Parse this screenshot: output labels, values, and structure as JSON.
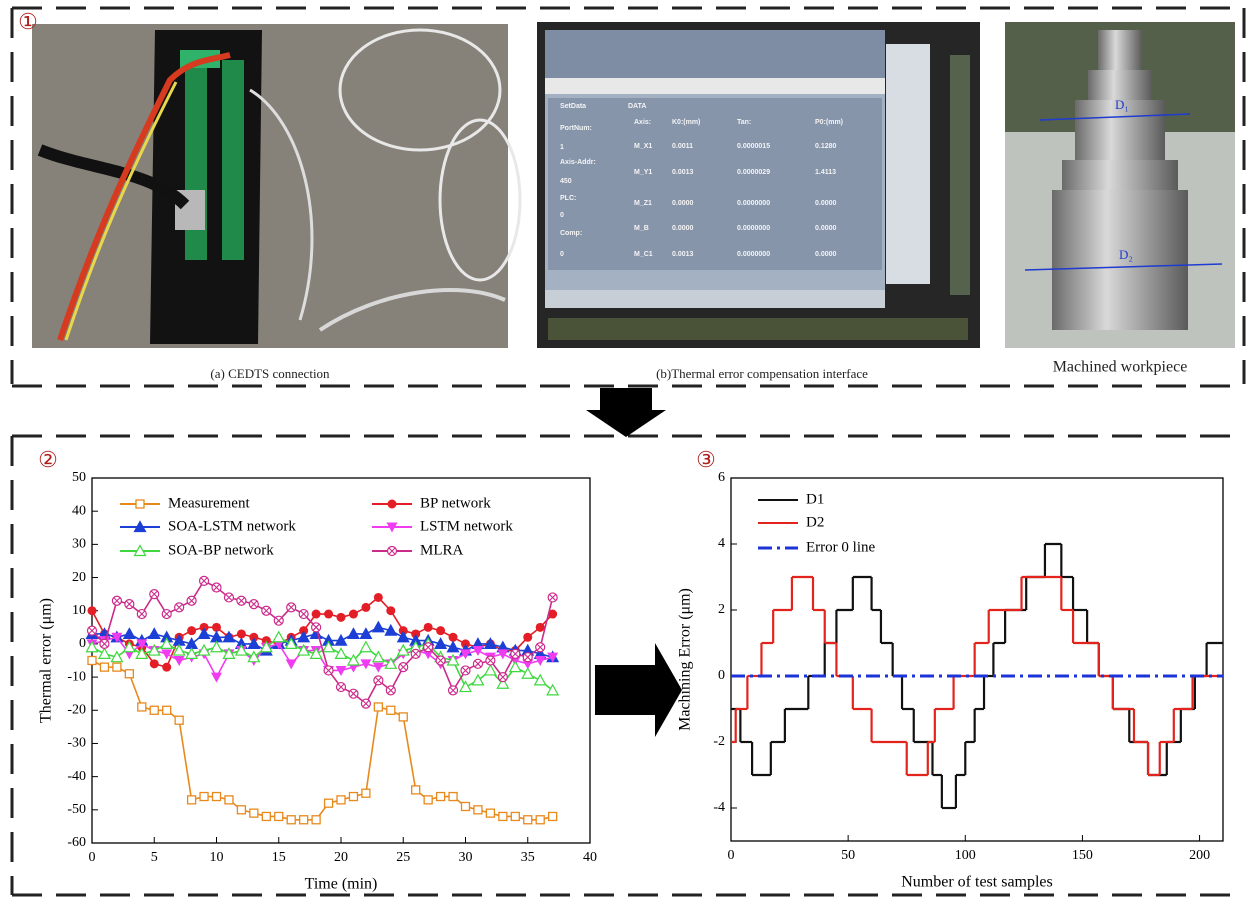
{
  "markers": [
    "①",
    "②",
    "③"
  ],
  "photos": {
    "a": {
      "caption": "(a) CEDTS connection"
    },
    "b": {
      "caption": "(b)Thermal error compensation interface",
      "screen": {
        "title": "DATA",
        "side": [
          "SetData",
          "PortNum:",
          "1",
          "Axis-Addr:",
          "450",
          "PLC:",
          "0",
          "Comp:",
          "0"
        ],
        "header": [
          "Axis:",
          "K0:(mm)",
          "Tan:",
          "P0:(mm)"
        ],
        "rows": [
          [
            "M_X1",
            "0.0011",
            "0.0000015",
            "0.1280"
          ],
          [
            "M_Y1",
            "0.0013",
            "0.0000029",
            "1.4113"
          ],
          [
            "M_Z1",
            "0.0000",
            "0.0000000",
            "0.0000"
          ],
          [
            "M_B",
            "0.0000",
            "0.0000000",
            "0.0000"
          ],
          [
            "M_C1",
            "0.0013",
            "0.0000000",
            "0.0000"
          ]
        ]
      }
    },
    "c": {
      "caption": "Machined workpiece",
      "labels": [
        "D₁",
        "D₂"
      ]
    }
  },
  "chart_data": [
    {
      "type": "line",
      "xlabel": "Time (min)",
      "ylabel": "Thermal error (μm)",
      "xlim": [
        0,
        40
      ],
      "xticks": [
        0,
        5,
        10,
        15,
        20,
        25,
        30,
        35,
        40
      ],
      "ylim": [
        -60,
        50
      ],
      "yticks": [
        -60,
        -50,
        -40,
        -30,
        -20,
        -10,
        0,
        10,
        20,
        30,
        40,
        50
      ],
      "legend": "upper left",
      "x": [
        0,
        1,
        2,
        3,
        4,
        5,
        6,
        7,
        8,
        9,
        10,
        11,
        12,
        13,
        14,
        15,
        16,
        17,
        18,
        19,
        20,
        21,
        22,
        23,
        24,
        25,
        26,
        27,
        28,
        29,
        30,
        31,
        32,
        33,
        34,
        35,
        36,
        37
      ],
      "series": [
        {
          "name": "Measurement",
          "color": "#e8891c",
          "marker": "square",
          "values": [
            -5,
            -7,
            -7,
            -9,
            -19,
            -20,
            -20,
            -23,
            -47,
            -46,
            -46,
            -47,
            -50,
            -51,
            -52,
            -52,
            -53,
            -53,
            -53,
            -48,
            -47,
            -46,
            -45,
            -19,
            -20,
            -22,
            -44,
            -47,
            -46,
            -46,
            -49,
            -50,
            -51,
            -52,
            -52,
            -53,
            -53,
            -52
          ]
        },
        {
          "name": "BP network",
          "color": "#e41e26",
          "marker": "circle",
          "values": [
            10,
            3,
            2,
            0,
            -1,
            -6,
            -7,
            2,
            4,
            5,
            5,
            2,
            3,
            2,
            1,
            0,
            2,
            4,
            9,
            9,
            8,
            9,
            11,
            14,
            10,
            4,
            3,
            5,
            4,
            2,
            0,
            -1,
            0,
            -2,
            -2,
            2,
            5,
            9
          ]
        },
        {
          "name": "SOA-LSTM network",
          "color": "#1c3fd6",
          "marker": "triangle",
          "values": [
            3,
            3,
            2,
            3,
            1,
            3,
            2,
            1,
            0,
            3,
            2,
            2,
            0,
            0,
            -2,
            0,
            1,
            2,
            3,
            1,
            1,
            3,
            3,
            5,
            4,
            2,
            1,
            1,
            0,
            -1,
            -2,
            0,
            0,
            -1,
            -2,
            -2,
            -3,
            -4
          ]
        },
        {
          "name": "LSTM network",
          "color": "#f03cf0",
          "marker": "down",
          "values": [
            0,
            1,
            2,
            -3,
            0,
            -2,
            -3,
            -5,
            -4,
            -3,
            -10,
            -3,
            -2,
            -5,
            -1,
            0,
            -6,
            -2,
            -2,
            -8,
            -8,
            -7,
            -6,
            -7,
            -6,
            -3,
            -2,
            -3,
            -6,
            -5,
            -3,
            -2,
            -4,
            -3,
            -5,
            -6,
            -5,
            -4
          ]
        },
        {
          "name": "SOA-BP network",
          "color": "#3ed83e",
          "marker": "otriangle",
          "values": [
            -1,
            -3,
            -4,
            -1,
            -3,
            -2,
            0,
            -2,
            -3,
            -2,
            -1,
            -3,
            -2,
            -4,
            -1,
            2,
            0,
            -2,
            -3,
            -1,
            -3,
            -5,
            -1,
            -4,
            -6,
            -2,
            -1,
            0,
            -4,
            -5,
            -13,
            -11,
            -8,
            -12,
            -7,
            -9,
            -11,
            -14
          ]
        },
        {
          "name": "MLRA",
          "color": "#cc2a8a",
          "marker": "circlex",
          "values": [
            4,
            0,
            13,
            12,
            9,
            15,
            9,
            11,
            13,
            19,
            17,
            14,
            13,
            12,
            10,
            7,
            11,
            9,
            5,
            -8,
            -13,
            -15,
            -18,
            -11,
            -14,
            -7,
            -3,
            -1,
            -5,
            -14,
            -8,
            -6,
            -5,
            -10,
            -3,
            -4,
            -1,
            14
          ]
        }
      ]
    },
    {
      "type": "line",
      "xlabel": "Number of  test samples",
      "ylabel": "Machining Error (μm)",
      "xlim": [
        0,
        210
      ],
      "xticks": [
        0,
        50,
        100,
        150,
        200
      ],
      "ylim": [
        -5,
        6
      ],
      "yticks": [
        -4,
        -2,
        0,
        2,
        4,
        6
      ],
      "legend": "upper left",
      "series": [
        {
          "name": "D1",
          "color": "#111111",
          "step": true,
          "x": [
            0,
            4,
            9,
            17,
            23,
            33,
            40,
            45,
            52,
            60,
            64,
            69,
            73,
            78,
            86,
            90,
            96,
            100,
            104,
            108,
            112,
            117,
            126,
            134,
            141,
            146,
            152,
            157,
            163,
            170,
            178,
            186,
            192,
            198,
            203
          ],
          "values": [
            -1,
            -2,
            -3,
            -2,
            -1,
            0,
            1,
            2,
            3,
            2,
            1,
            0,
            -1,
            -2,
            -3,
            -4,
            -3,
            -2,
            -1,
            0,
            1,
            2,
            3,
            4,
            3,
            2,
            1,
            0,
            -1,
            -2,
            -3,
            -2,
            -1,
            0,
            1
          ]
        },
        {
          "name": "D2",
          "color": "#e3241c",
          "step": true,
          "x": [
            0,
            2,
            7,
            13,
            18,
            26,
            35,
            40,
            45,
            52,
            60,
            75,
            84,
            87,
            95,
            104,
            110,
            124,
            141,
            146,
            157,
            163,
            172,
            178,
            183,
            189,
            197
          ],
          "values": [
            -2,
            -1,
            0,
            1,
            2,
            3,
            2,
            1,
            0,
            -1,
            -2,
            -3,
            -2,
            -1,
            0,
            1,
            2,
            3,
            2,
            1,
            0,
            -1,
            -2,
            -3,
            -2,
            -1,
            0
          ]
        },
        {
          "name": "Error 0 line",
          "color": "#1c33d8",
          "dash": true,
          "x": [
            0,
            210
          ],
          "values": [
            0,
            0
          ]
        }
      ]
    }
  ]
}
